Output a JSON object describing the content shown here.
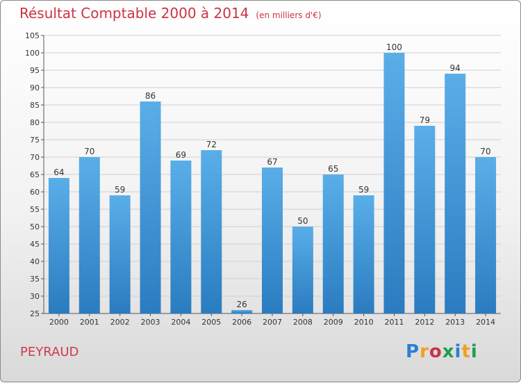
{
  "header": {
    "title": "Résultat Comptable 2000 à 2014",
    "subtitle": "(en milliers d'€)"
  },
  "footer": {
    "commune": "PEYRAUD",
    "logo_letters": [
      "P",
      "r",
      "o",
      "x",
      "i",
      "t",
      "i"
    ]
  },
  "colors": {
    "bar_top": "#5aaee8",
    "bar_bottom": "#2a7cc0",
    "title": "#cc3344"
  },
  "chart_data": {
    "type": "bar",
    "title": "Résultat Comptable 2000 à 2014",
    "subtitle": "(en milliers d'€)",
    "xlabel": "",
    "ylabel": "",
    "categories": [
      "2000",
      "2001",
      "2002",
      "2003",
      "2004",
      "2005",
      "2006",
      "2007",
      "2008",
      "2009",
      "2010",
      "2011",
      "2012",
      "2013",
      "2014"
    ],
    "values": [
      64,
      70,
      59,
      86,
      69,
      72,
      26,
      67,
      50,
      65,
      59,
      100,
      79,
      94,
      70
    ],
    "ylim": [
      25,
      105
    ],
    "yticks": [
      25,
      30,
      35,
      40,
      45,
      50,
      55,
      60,
      65,
      70,
      75,
      80,
      85,
      90,
      95,
      100,
      105
    ],
    "grid": true,
    "legend": "none"
  }
}
